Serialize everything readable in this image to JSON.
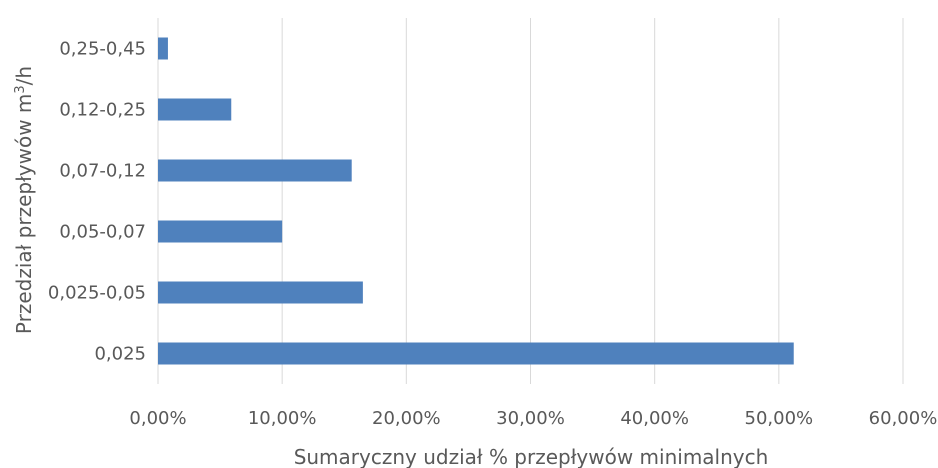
{
  "chart_data": {
    "type": "bar",
    "orientation": "horizontal",
    "title": "",
    "xlabel": "Sumaryczny udział % przepływów minimalnych",
    "ylabel_prefix": "Przedział przepływów m",
    "ylabel_sup": "3",
    "ylabel_suffix": "/h",
    "categories": [
      "0,025",
      "0,025-0,05",
      "0,05-0,07",
      "0,07-0,12",
      "0,12-0,25",
      "0,25-0,45"
    ],
    "values": [
      51.2,
      16.5,
      10.0,
      15.6,
      5.9,
      0.8
    ],
    "xlim": [
      0,
      60
    ],
    "xticks": [
      "0,00%",
      "10,00%",
      "20,00%",
      "30,00%",
      "40,00%",
      "50,00%",
      "60,00%"
    ],
    "grid": "vertical",
    "bar_color": "#4f81bd",
    "grid_color": "#d9d9d9",
    "legend": "none"
  }
}
